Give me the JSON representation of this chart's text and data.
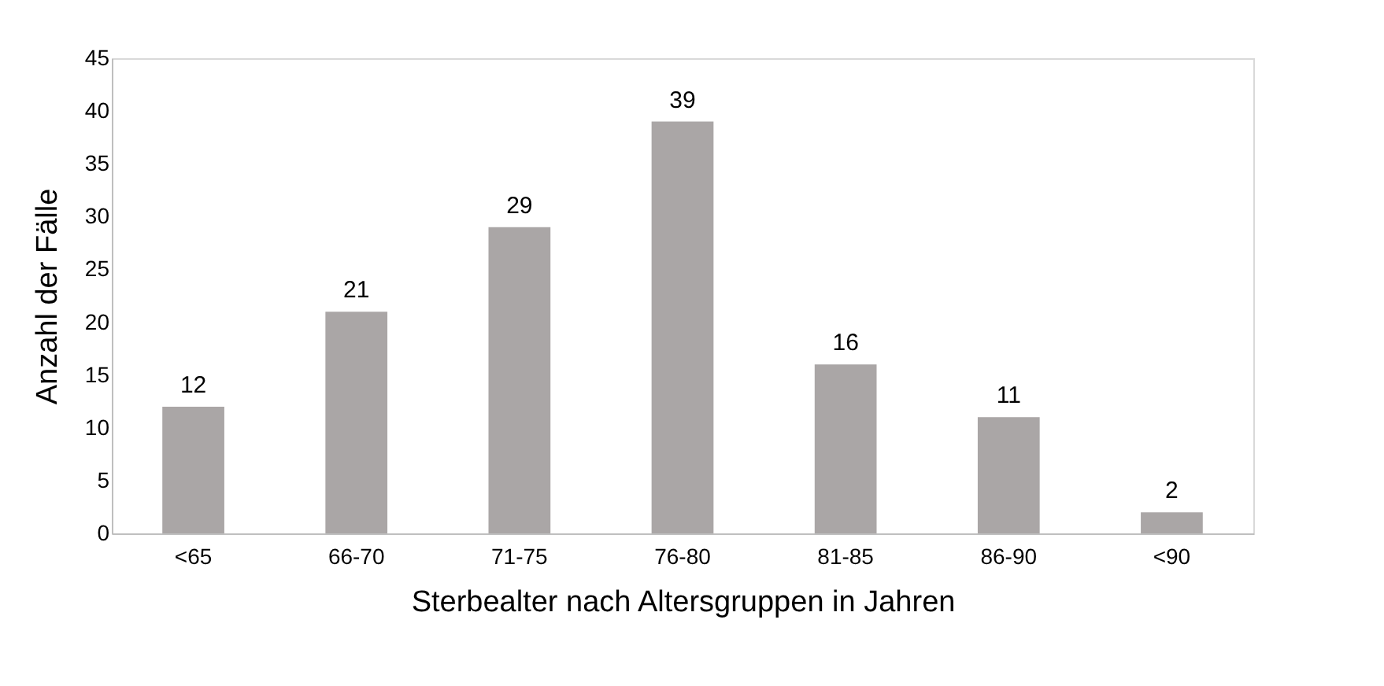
{
  "chart_data": {
    "type": "bar",
    "xlabel": "Sterbealter nach Altersgruppen in Jahren",
    "ylabel": "Anzahl der Fälle",
    "categories": [
      "<65",
      "66-70",
      "71-75",
      "76-80",
      "81-85",
      "86-90",
      "<90"
    ],
    "values": [
      12,
      21,
      29,
      39,
      16,
      11,
      2
    ],
    "color": "#aaa6a6",
    "ylim": [
      0,
      45
    ],
    "yticks": [
      0,
      5,
      10,
      15,
      20,
      25,
      30,
      35,
      40,
      45
    ],
    "grid": false,
    "data_labels": true
  }
}
